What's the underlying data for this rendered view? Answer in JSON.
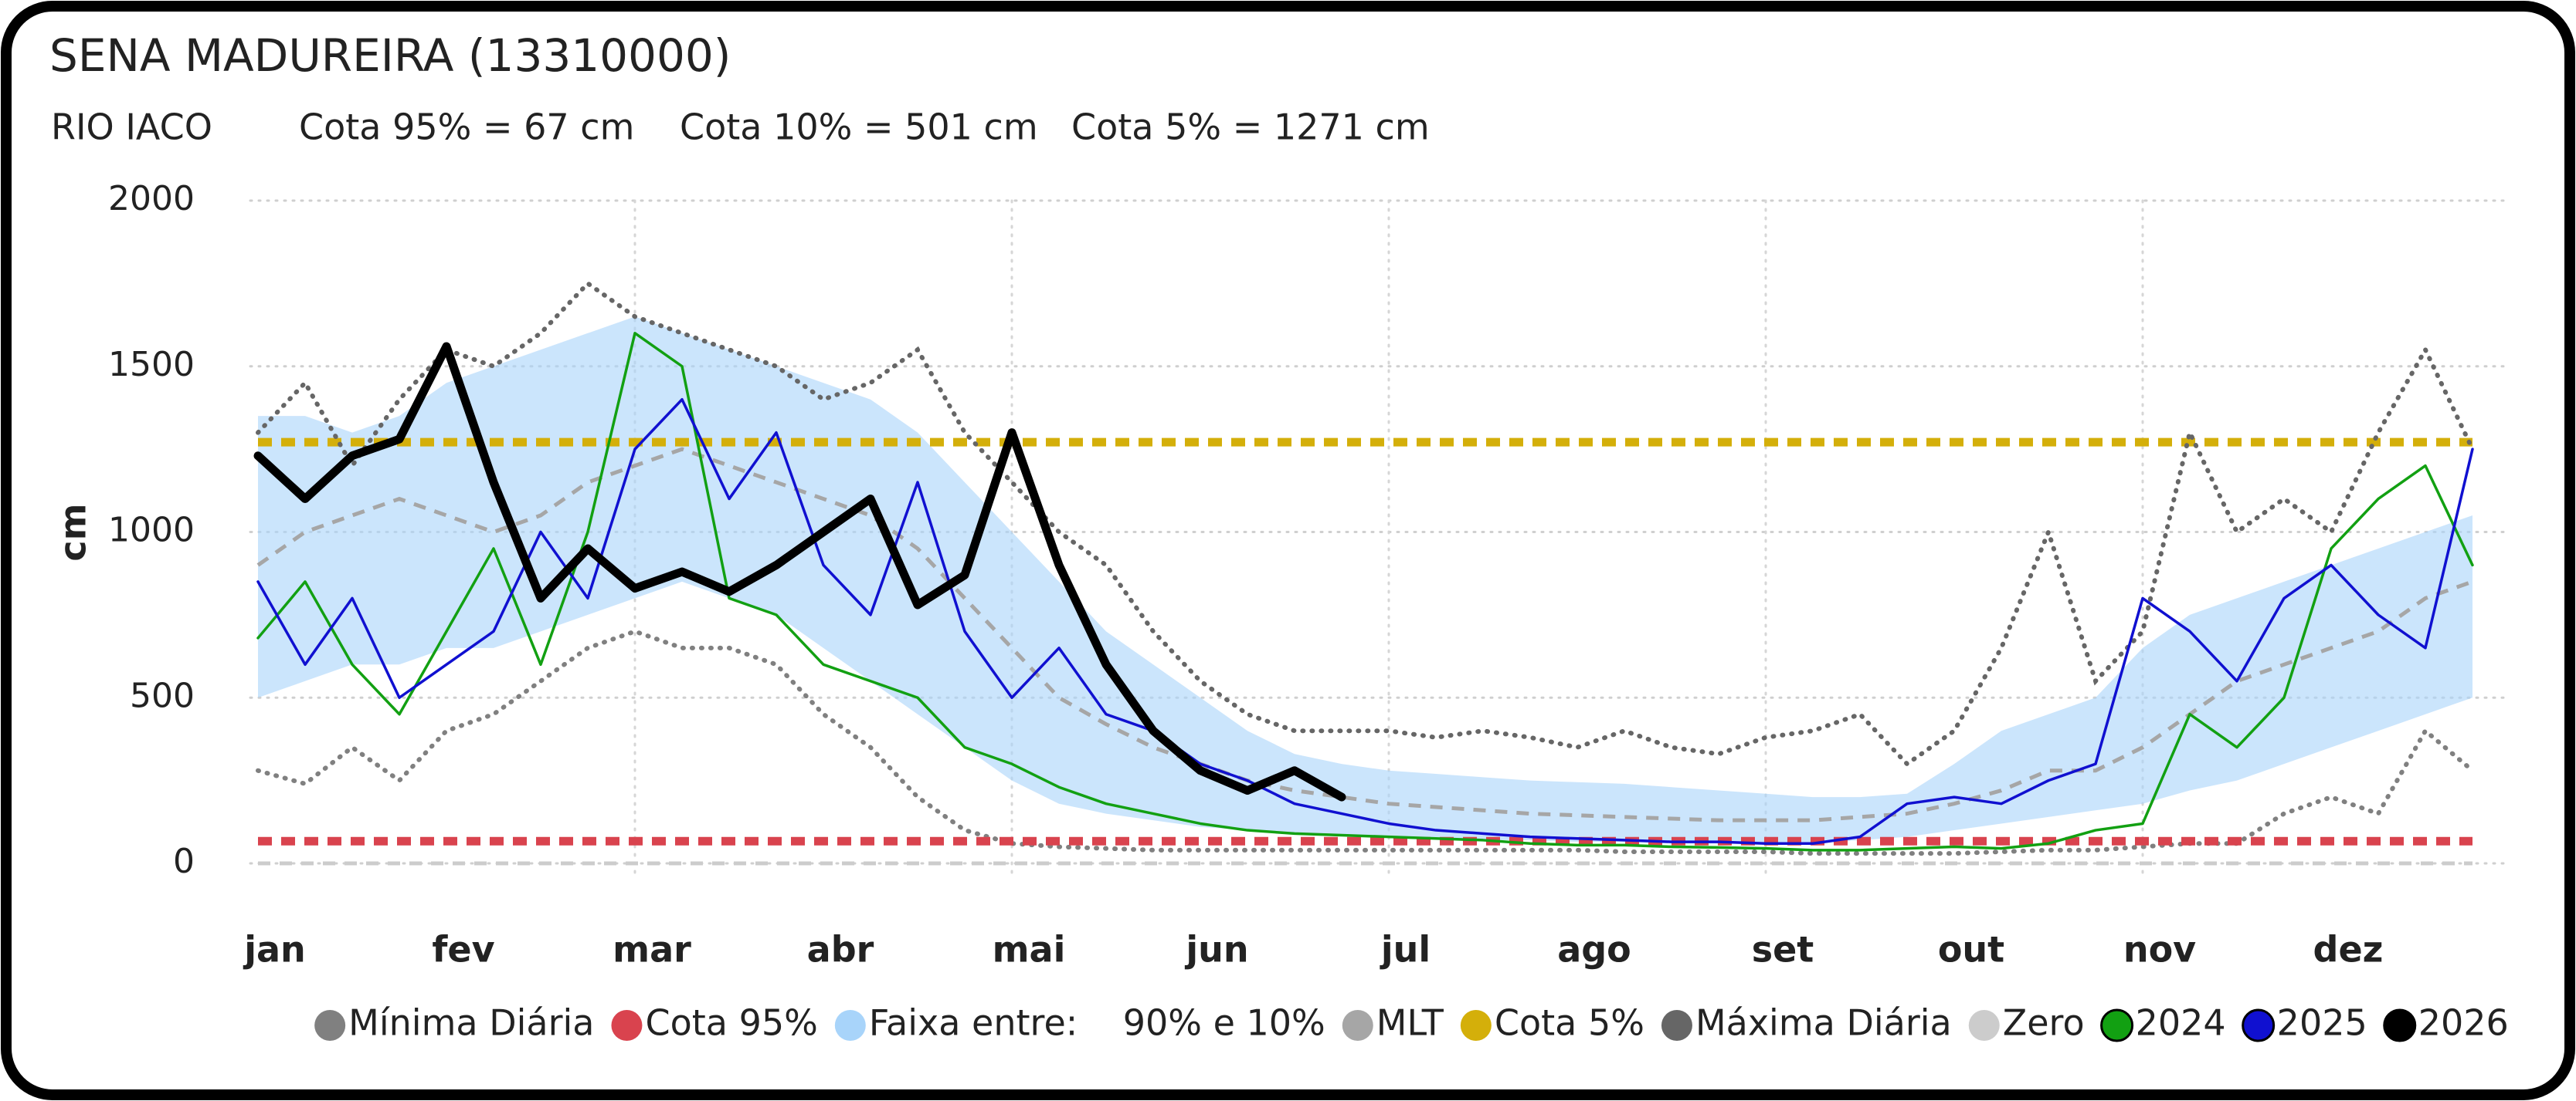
{
  "chart_data": {
    "type": "line",
    "title": "SENA MADUREIRA (13310000)",
    "subtitle": [
      "RIO IACO",
      "Cota 95% = 67 cm",
      "Cota 10% = 501 cm",
      "Cota 5% = 1271 cm"
    ],
    "y_label": "cm",
    "categories": [
      "jan",
      null,
      null,
      null,
      "fev",
      null,
      null,
      null,
      "mar",
      null,
      null,
      null,
      "abr",
      null,
      null,
      null,
      "mai",
      null,
      null,
      null,
      "jun",
      null,
      null,
      null,
      "jul",
      null,
      null,
      null,
      "ago",
      null,
      null,
      null,
      "set",
      null,
      null,
      null,
      "out",
      null,
      null,
      null,
      "nov",
      null,
      null,
      null,
      "dez",
      null,
      null,
      null
    ],
    "ylim": [
      0,
      2000
    ],
    "yticks": [
      0,
      500,
      1000,
      1500,
      2000
    ],
    "grid": true,
    "series": [
      {
        "name": "Mínima Diária",
        "color": "#808080",
        "dash": "dotted",
        "values": [
          280,
          240,
          350,
          250,
          400,
          450,
          550,
          650,
          700,
          650,
          650,
          600,
          450,
          350,
          200,
          100,
          60,
          50,
          45,
          40,
          40,
          40,
          40,
          40,
          40,
          40,
          40,
          40,
          40,
          35,
          35,
          35,
          35,
          30,
          30,
          30,
          30,
          35,
          40,
          40,
          50,
          60,
          60,
          150,
          200,
          150,
          400,
          280
        ]
      },
      {
        "name": "Cota 95%",
        "color": "#d9434e",
        "dash": "dashed",
        "value": 67
      },
      {
        "name": "Faixa entre:    90% e 10%",
        "color": "#a8d4fa",
        "high": [
          1350,
          1350,
          1300,
          1350,
          1450,
          1500,
          1550,
          1600,
          1650,
          1600,
          1550,
          1500,
          1450,
          1400,
          1300,
          1150,
          1000,
          850,
          700,
          600,
          500,
          400,
          330,
          300,
          280,
          270,
          260,
          250,
          245,
          240,
          230,
          220,
          210,
          200,
          200,
          210,
          300,
          400,
          450,
          500,
          650,
          750,
          800,
          850,
          900,
          950,
          1000,
          1050
        ],
        "low": [
          500,
          550,
          600,
          600,
          650,
          650,
          700,
          750,
          800,
          850,
          800,
          750,
          650,
          550,
          450,
          350,
          250,
          180,
          150,
          130,
          110,
          100,
          90,
          85,
          80,
          75,
          70,
          70,
          65,
          65,
          60,
          60,
          60,
          60,
          70,
          80,
          100,
          120,
          140,
          160,
          180,
          220,
          250,
          300,
          350,
          400,
          450,
          500
        ]
      },
      {
        "name": "MLT",
        "color": "#a6a6a6",
        "dash": "dashed",
        "values": [
          900,
          1000,
          1050,
          1100,
          1050,
          1000,
          1050,
          1150,
          1200,
          1250,
          1200,
          1150,
          1100,
          1050,
          950,
          800,
          650,
          500,
          420,
          350,
          300,
          250,
          220,
          200,
          180,
          170,
          160,
          150,
          145,
          140,
          135,
          130,
          130,
          130,
          140,
          150,
          180,
          220,
          280,
          280,
          350,
          450,
          550,
          600,
          650,
          700,
          800,
          850
        ]
      },
      {
        "name": "Cota 5%",
        "color": "#d4af0a",
        "dash": "dashed",
        "value": 1271
      },
      {
        "name": "Máxima Diária",
        "color": "#666666",
        "dash": "dotted",
        "values": [
          1300,
          1450,
          1200,
          1400,
          1550,
          1500,
          1600,
          1750,
          1650,
          1600,
          1550,
          1500,
          1400,
          1450,
          1550,
          1300,
          1150,
          1000,
          900,
          700,
          550,
          450,
          400,
          400,
          400,
          380,
          400,
          380,
          350,
          400,
          350,
          330,
          380,
          400,
          450,
          300,
          400,
          650,
          1000,
          550,
          700,
          1300,
          1000,
          1100,
          1000,
          1300,
          1550,
          1250
        ]
      },
      {
        "name": "Zero",
        "color": "#cccccc",
        "dash": "dashed",
        "value": 0
      },
      {
        "name": "2024",
        "color": "#12a012",
        "legend_outline": true,
        "values": [
          680,
          850,
          600,
          450,
          700,
          950,
          600,
          1000,
          1600,
          1500,
          800,
          750,
          600,
          550,
          500,
          350,
          300,
          230,
          180,
          150,
          120,
          100,
          90,
          85,
          80,
          75,
          70,
          60,
          55,
          55,
          50,
          48,
          45,
          40,
          40,
          45,
          50,
          45,
          60,
          100,
          120,
          450,
          350,
          500,
          950,
          1100,
          1200,
          900
        ]
      },
      {
        "name": "2025",
        "color": "#1010d0",
        "legend_outline": true,
        "values": [
          850,
          600,
          800,
          500,
          600,
          700,
          1000,
          800,
          1250,
          1400,
          1100,
          1300,
          900,
          750,
          1150,
          700,
          500,
          650,
          450,
          400,
          300,
          250,
          180,
          150,
          120,
          100,
          90,
          80,
          75,
          70,
          65,
          65,
          60,
          60,
          80,
          180,
          200,
          180,
          250,
          300,
          800,
          700,
          550,
          800,
          900,
          750,
          650,
          1250
        ]
      },
      {
        "name": "2026",
        "color": "#000000",
        "legend_outline": true,
        "width": "bold",
        "values": [
          1230,
          1100,
          1230,
          1280,
          1560,
          1150,
          800,
          950,
          830,
          880,
          820,
          900,
          1000,
          1100,
          780,
          870,
          1300,
          900,
          600,
          400,
          280,
          220,
          280,
          200,
          null,
          null,
          null,
          null,
          null,
          null,
          null,
          null,
          null,
          null,
          null,
          null,
          null,
          null,
          null,
          null,
          null,
          null,
          null,
          null,
          null,
          null,
          null,
          null
        ]
      }
    ]
  }
}
